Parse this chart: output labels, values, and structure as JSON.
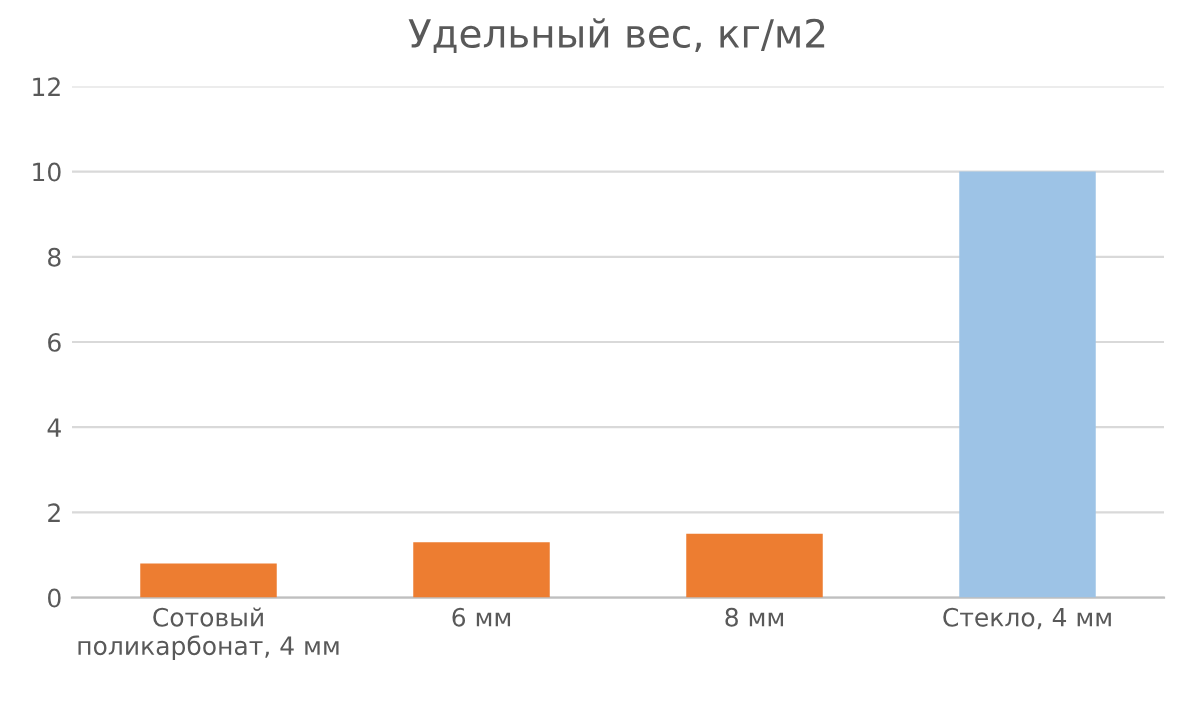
{
  "chart_data": {
    "type": "bar",
    "title": "Удельный вес, кг/м2",
    "categories": [
      "Сотовый\nполикарбонат, 4 мм",
      "6 мм",
      "8 мм",
      "Стекло, 4 мм"
    ],
    "values": [
      0.8,
      1.3,
      1.5,
      10
    ],
    "colors": [
      "#ed7d31",
      "#ed7d31",
      "#ed7d31",
      "#9dc3e6"
    ],
    "ylim": [
      0,
      12
    ],
    "yticks": [
      0,
      2,
      4,
      6,
      8,
      10,
      12
    ],
    "grid": "y",
    "legend": false
  }
}
